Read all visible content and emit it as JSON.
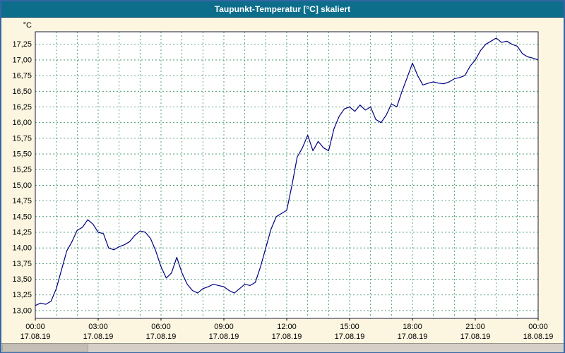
{
  "window": {
    "title": "Taupunkt-Temperatur [°C] skaliert"
  },
  "chart_data": {
    "type": "line",
    "title": "Taupunkt-Temperatur [°C] skaliert",
    "unit_label": "°C",
    "xlabel": "",
    "ylabel": "°C",
    "xlim": [
      0,
      24
    ],
    "ylim": [
      12.875,
      17.45
    ],
    "grid": true,
    "legend": "none",
    "x_minor_step_hours": 1,
    "y_ticks": [
      {
        "value": 17.25,
        "label": "17,25"
      },
      {
        "value": 17.0,
        "label": "17,00"
      },
      {
        "value": 16.75,
        "label": "16,75"
      },
      {
        "value": 16.5,
        "label": "16,50"
      },
      {
        "value": 16.25,
        "label": "16,25"
      },
      {
        "value": 16.0,
        "label": "16,00"
      },
      {
        "value": 15.75,
        "label": "15,75"
      },
      {
        "value": 15.5,
        "label": "15,50"
      },
      {
        "value": 15.25,
        "label": "15,25"
      },
      {
        "value": 15.0,
        "label": "15,00"
      },
      {
        "value": 14.75,
        "label": "14,75"
      },
      {
        "value": 14.5,
        "label": "14,50"
      },
      {
        "value": 14.25,
        "label": "14,25"
      },
      {
        "value": 14.0,
        "label": "14,00"
      },
      {
        "value": 13.75,
        "label": "13,75"
      },
      {
        "value": 13.5,
        "label": "13,50"
      },
      {
        "value": 13.25,
        "label": "13,25"
      },
      {
        "value": 13.0,
        "label": "13,00"
      }
    ],
    "x_ticks": [
      {
        "hour": 0,
        "time": "00:00",
        "date": "17.08.19"
      },
      {
        "hour": 3,
        "time": "03:00",
        "date": "17.08.19"
      },
      {
        "hour": 6,
        "time": "06:00",
        "date": "17.08.19"
      },
      {
        "hour": 9,
        "time": "09:00",
        "date": "17.08.19"
      },
      {
        "hour": 12,
        "time": "12:00",
        "date": "17.08.19"
      },
      {
        "hour": 15,
        "time": "15:00",
        "date": "17.08.19"
      },
      {
        "hour": 18,
        "time": "18:00",
        "date": "17.08.19"
      },
      {
        "hour": 21,
        "time": "21:00",
        "date": "17.08.19"
      },
      {
        "hour": 24,
        "time": "00:00",
        "date": "18.08.19"
      }
    ],
    "series": [
      {
        "name": "Taupunkt-Temperatur",
        "x_start_hours": 0,
        "x_step_hours": 0.25,
        "values": [
          13.08,
          13.12,
          13.1,
          13.15,
          13.35,
          13.65,
          13.95,
          14.1,
          14.28,
          14.33,
          14.45,
          14.38,
          14.25,
          14.23,
          14.0,
          13.97,
          14.02,
          14.05,
          14.1,
          14.2,
          14.27,
          14.25,
          14.15,
          13.95,
          13.7,
          13.52,
          13.6,
          13.85,
          13.6,
          13.42,
          13.32,
          13.28,
          13.35,
          13.38,
          13.42,
          13.4,
          13.38,
          13.32,
          13.28,
          13.35,
          13.42,
          13.4,
          13.45,
          13.7,
          14.0,
          14.3,
          14.5,
          14.55,
          14.6,
          15.0,
          15.45,
          15.6,
          15.8,
          15.55,
          15.7,
          15.6,
          15.55,
          15.9,
          16.1,
          16.22,
          16.25,
          16.18,
          16.28,
          16.2,
          16.25,
          16.05,
          16.0,
          16.12,
          16.3,
          16.25,
          16.5,
          16.72,
          16.95,
          16.75,
          16.6,
          16.63,
          16.65,
          16.63,
          16.62,
          16.65,
          16.7,
          16.72,
          16.75,
          16.9,
          17.0,
          17.15,
          17.25,
          17.3,
          17.35,
          17.28,
          17.3,
          17.25,
          17.22,
          17.1,
          17.05,
          17.03,
          17.0
        ]
      }
    ],
    "colors": {
      "line": "#000080",
      "grid": "#2e8b57",
      "plot_bg": "#ffffff",
      "plot_border": "#1a1a3a",
      "window_bg": "#fcf6e0",
      "titlebar_bg": "#0d6e8c",
      "titlebar_text": "#ffffff",
      "axis_text": "#000000"
    }
  }
}
